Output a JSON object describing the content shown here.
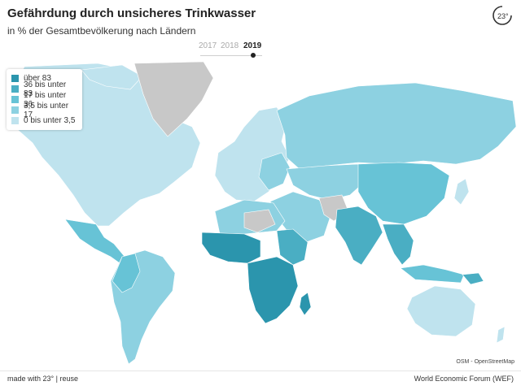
{
  "header": {
    "title": "Gefährdung durch unsicheres Trinkwasser",
    "subtitle": "in % der Gesamtbevölkerung nach Ländern"
  },
  "timeline": {
    "years": [
      "2017",
      "2018",
      "2019"
    ],
    "selected": "2019"
  },
  "legend": {
    "items": [
      {
        "label": "über 83",
        "color": "#2b95ad"
      },
      {
        "label": "36 bis unter 83",
        "color": "#4aaec3"
      },
      {
        "label": "17 bis unter 36",
        "color": "#67c3d6"
      },
      {
        "label": "3,5 bis unter 17",
        "color": "#8dd1e1"
      },
      {
        "label": "0 bis unter 3,5",
        "color": "#bfe3ee"
      }
    ]
  },
  "map": {
    "no_data_color": "#c8c8c8",
    "attribution": "OSM - OpenStreetMap"
  },
  "footer": {
    "left": "made with 23° | reuse",
    "right": "World Economic Forum (WEF)"
  }
}
